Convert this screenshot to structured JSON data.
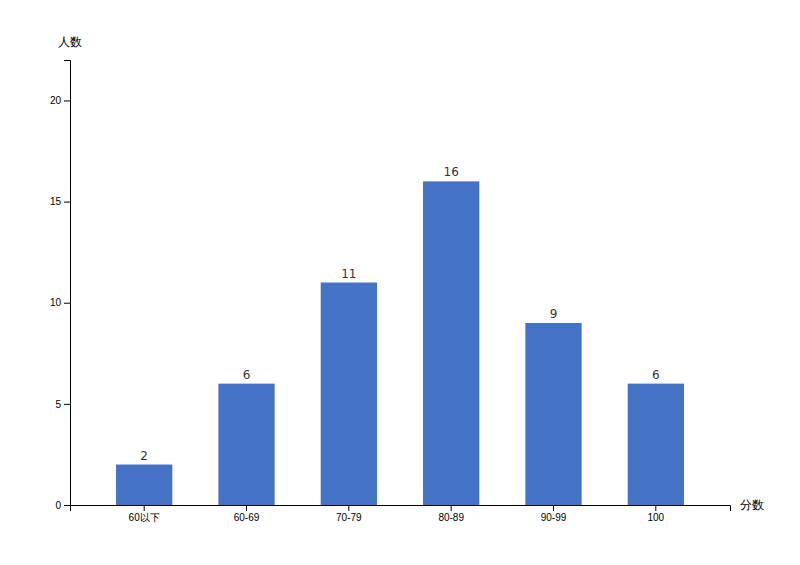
{
  "chart_data": {
    "type": "bar",
    "categories": [
      "60以下",
      "60-69",
      "70-79",
      "80-89",
      "90-99",
      "100"
    ],
    "values": [
      2,
      6,
      11,
      16,
      9,
      6
    ],
    "color": "#4472C4",
    "ylim": [
      0,
      22
    ],
    "yticks": [
      0,
      5,
      10,
      15,
      20
    ],
    "ylabel": "人数",
    "xlabel": "分数",
    "data_labels": true,
    "grid": false
  }
}
